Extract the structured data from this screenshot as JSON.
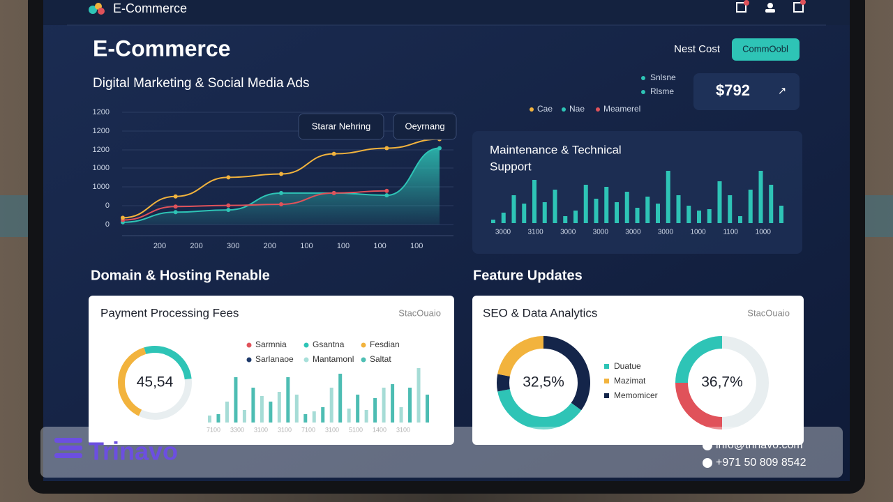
{
  "topbar": {
    "brand": "E-Commerce"
  },
  "header": {
    "title": "E-Commerce",
    "subtitle": "Digital Marketing & Social Media Ads",
    "cost_label": "Nest Cost",
    "button": "CommOobl",
    "legend": [
      {
        "name": "Snlsne",
        "color": "#2ec4b6"
      },
      {
        "name": "Rlsme",
        "color": "#2ec4b6"
      }
    ],
    "price": "$792",
    "price_icon": "↗"
  },
  "line_chart": {
    "type": "line",
    "ylim": [
      0,
      100
    ],
    "y_labels": [
      "1200",
      "1200",
      "1200",
      "1000",
      "1000",
      "0",
      "0"
    ],
    "x_labels": [
      "200",
      "200",
      "300",
      "200",
      "100",
      "100",
      "100",
      "100"
    ],
    "tooltips": [
      "Starar Nehring",
      "Oeyrnang"
    ],
    "series": [
      {
        "name": "Cae",
        "color": "#f2b33d",
        "values": [
          6,
          25,
          42,
          45,
          63,
          68,
          76
        ]
      },
      {
        "name": "Nae",
        "color": "#2ec4b6",
        "values": [
          2,
          11,
          13,
          28,
          28,
          26,
          68
        ]
      },
      {
        "name": "Meamerel",
        "color": "#e0525a",
        "values": [
          4,
          16,
          17,
          18,
          28,
          30,
          null
        ]
      }
    ]
  },
  "maintenance": {
    "type": "bar",
    "title_lines": [
      "Maintenance & Technical",
      "Support"
    ],
    "color": "#2ec4b6",
    "ylim": [
      0,
      80
    ],
    "values": [
      5,
      15,
      40,
      28,
      62,
      30,
      48,
      10,
      18,
      55,
      35,
      52,
      30,
      45,
      22,
      38,
      28,
      75,
      40,
      25,
      18,
      20,
      60,
      40,
      10,
      48,
      75,
      55,
      25
    ],
    "x_labels": [
      "3000",
      "3100",
      "3000",
      "3000",
      "3000",
      "3000",
      "1000",
      "1100",
      "1000"
    ]
  },
  "sections": [
    "Domain & Hosting Renable",
    "Feature Updates"
  ],
  "payment_card": {
    "title": "Payment Processing Fees",
    "tag": "StacOuaio",
    "donut": {
      "type": "pie",
      "center": "45,54",
      "segments": [
        {
          "color": "#2ec4b6",
          "value": 28
        },
        {
          "color": "#e8eef0",
          "value": 34
        },
        {
          "color": "#f2b33d",
          "value": 38
        }
      ]
    },
    "legend": [
      {
        "name": "Sarmnia",
        "color": "#e0525a"
      },
      {
        "name": "Gsantna",
        "color": "#2ec4b6"
      },
      {
        "name": "Fesdian",
        "color": "#f2b33d"
      },
      {
        "name": "Sarlanaoe",
        "color": "#1f3a6b"
      },
      {
        "name": "Mantamonl",
        "color": "#a8e0da"
      },
      {
        "name": "Saltat",
        "color": "#4fbfb4"
      }
    ],
    "bars": {
      "type": "bar",
      "ylim": [
        0,
        80
      ],
      "colors": [
        "#a6dcd6",
        "#4dbdb3"
      ],
      "values": [
        10,
        12,
        30,
        65,
        18,
        50,
        38,
        30,
        44,
        65,
        40,
        12,
        16,
        22,
        50,
        70,
        20,
        40,
        18,
        35,
        50,
        55,
        22,
        50,
        78,
        40
      ],
      "x_labels": [
        "7100",
        "3300",
        "3100",
        "3100",
        "7100",
        "3100",
        "5100",
        "1400",
        "3100"
      ]
    }
  },
  "seo_card": {
    "title": "SEO & Data Analytics",
    "tag": "StacOuaio",
    "donuts": [
      {
        "type": "pie",
        "center": "32,5%",
        "segments": [
          {
            "color": "#14254a",
            "value": 35
          },
          {
            "color": "#2ec4b6",
            "value": 37
          },
          {
            "color": "#14254a",
            "value": 6
          },
          {
            "color": "#f2b33d",
            "value": 22
          }
        ]
      },
      {
        "type": "pie",
        "center": "36,7%",
        "segments": [
          {
            "color": "#e8eef0",
            "value": 50
          },
          {
            "color": "#e0525a",
            "value": 25
          },
          {
            "color": "#2ec4b6",
            "value": 25
          }
        ]
      }
    ],
    "legend": [
      {
        "name": "Duatue",
        "color": "#2ec4b6"
      },
      {
        "name": "Mazimat",
        "color": "#f2b33d"
      },
      {
        "name": "Memomicer",
        "color": "#14254a"
      }
    ]
  },
  "footer": {
    "brand": "Trinavo",
    "email": "info@trinavo.com",
    "phone": "+971 50 809 8542"
  }
}
